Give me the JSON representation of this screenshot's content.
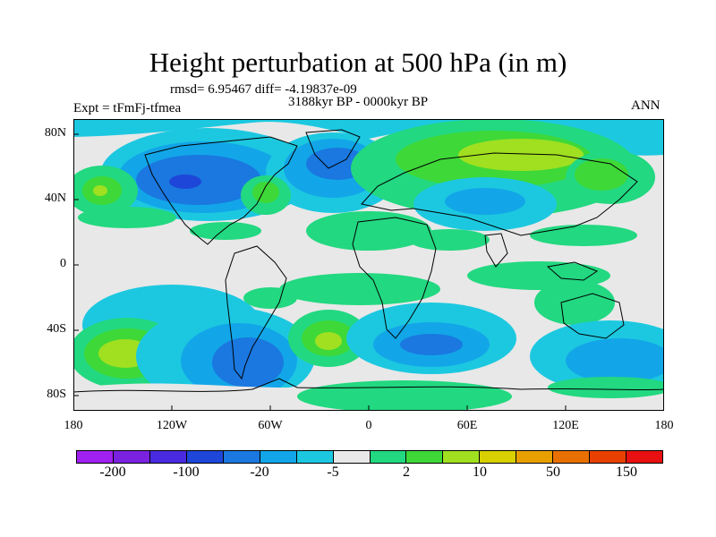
{
  "title": "Height perturbation at 500 hPa (in m)",
  "stats": {
    "rmsd_text": "rmsd= 6.95467 diff= -4.19837e-09"
  },
  "period": "3188kyr BP - 0000kyr BP",
  "experiment": "Expt = tFmFj-tfmea",
  "season": "ANN",
  "axes": {
    "y_ticks": [
      "80N",
      "40N",
      "0",
      "40S",
      "80S"
    ],
    "x_ticks": [
      "180",
      "120W",
      "60W",
      "0",
      "60E",
      "120E",
      "180"
    ]
  },
  "colorbar": {
    "colors": [
      "#a020f0",
      "#7a22e0",
      "#4a2ae0",
      "#1e46d8",
      "#1a78e0",
      "#12a6e8",
      "#1cc8e0",
      "#e8e8e8",
      "#22d880",
      "#3ed838",
      "#a0e020",
      "#d8d000",
      "#e8a000",
      "#e87000",
      "#e84000",
      "#e81010"
    ],
    "labels": [
      "-200",
      "-100",
      "-20",
      "-5",
      "2",
      "10",
      "50",
      "150"
    ]
  }
}
